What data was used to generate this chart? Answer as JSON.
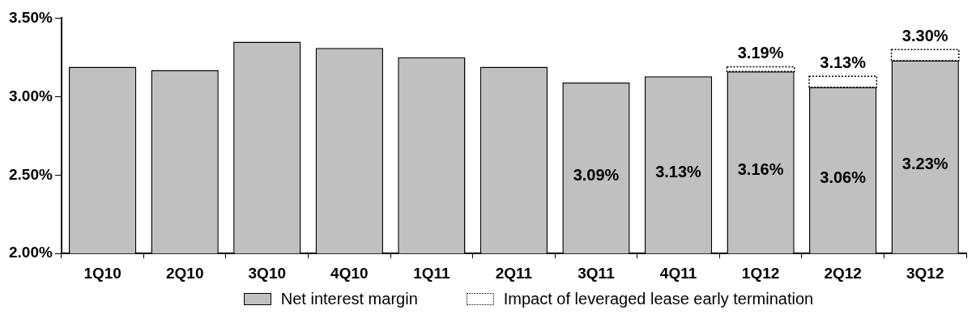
{
  "chart_data": {
    "type": "bar",
    "categories": [
      "1Q10",
      "2Q10",
      "3Q10",
      "4Q10",
      "1Q11",
      "2Q11",
      "3Q11",
      "4Q11",
      "1Q12",
      "2Q12",
      "3Q12"
    ],
    "series": [
      {
        "name": "Net interest margin",
        "color": "#c0c0c0",
        "values": [
          3.19,
          3.17,
          3.35,
          3.31,
          3.25,
          3.19,
          3.09,
          3.13,
          3.16,
          3.06,
          3.23
        ],
        "value_labels": [
          null,
          null,
          null,
          null,
          null,
          null,
          "3.09%",
          "3.13%",
          "3.16%",
          "3.06%",
          "3.23%"
        ]
      },
      {
        "name": "Impact of leveraged lease early termination",
        "color": "#ffffff",
        "line_style": "dotted",
        "base": [
          null,
          null,
          null,
          null,
          null,
          null,
          null,
          null,
          3.16,
          3.06,
          3.23
        ],
        "values": [
          null,
          null,
          null,
          null,
          null,
          null,
          null,
          null,
          0.03,
          0.07,
          0.07
        ]
      }
    ],
    "annotations": [
      {
        "text": "3.19%",
        "x": "1Q12",
        "y": 3.19
      },
      {
        "text": "3.13%",
        "x": "2Q12",
        "y": 3.13
      },
      {
        "text": "3.30%",
        "x": "3Q12",
        "y": 3.3
      }
    ],
    "ylim": [
      2.0,
      3.5
    ],
    "yticks": [
      {
        "value": 2.0,
        "label": "2.00%"
      },
      {
        "value": 2.5,
        "label": "2.50%"
      },
      {
        "value": 3.0,
        "label": "3.00%"
      },
      {
        "value": 3.5,
        "label": "3.50%"
      }
    ],
    "legend": "bottom"
  }
}
